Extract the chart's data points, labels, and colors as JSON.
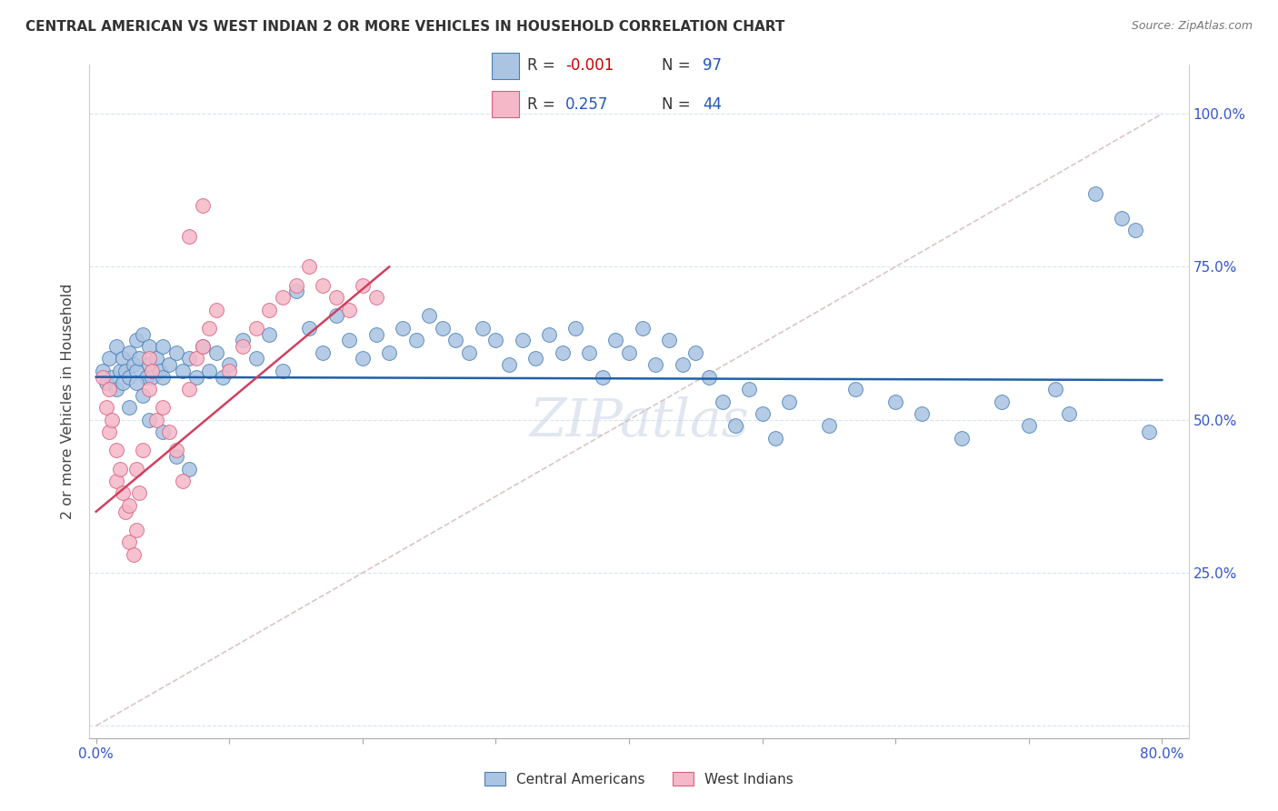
{
  "title": "CENTRAL AMERICAN VS WEST INDIAN 2 OR MORE VEHICLES IN HOUSEHOLD CORRELATION CHART",
  "source": "Source: ZipAtlas.com",
  "ylabel": "2 or more Vehicles in Household",
  "blue_color": "#aac4e2",
  "pink_color": "#f5b8c8",
  "blue_edge_color": "#4a7fb5",
  "pink_edge_color": "#d96080",
  "blue_line_color": "#2060a8",
  "pink_line_color": "#d04060",
  "diag_line_color": "#d0b8b8",
  "watermark_color": "#cdd8e8",
  "legend_R_color": "#cc0000",
  "legend_N_color": "#2255bb",
  "legend_label_color": "#333333",
  "title_color": "#333333",
  "tick_color": "#3355cc",
  "grid_color": "#d8e4f0",
  "blue_scatter_x": [
    0.005,
    0.008,
    0.01,
    0.012,
    0.015,
    0.015,
    0.018,
    0.02,
    0.02,
    0.022,
    0.025,
    0.025,
    0.028,
    0.03,
    0.03,
    0.032,
    0.035,
    0.038,
    0.04,
    0.04,
    0.042,
    0.045,
    0.048,
    0.05,
    0.05,
    0.055,
    0.06,
    0.065,
    0.07,
    0.075,
    0.08,
    0.085,
    0.09,
    0.095,
    0.1,
    0.11,
    0.12,
    0.13,
    0.14,
    0.15,
    0.16,
    0.17,
    0.18,
    0.19,
    0.2,
    0.21,
    0.22,
    0.23,
    0.24,
    0.25,
    0.26,
    0.27,
    0.28,
    0.29,
    0.3,
    0.31,
    0.32,
    0.33,
    0.34,
    0.35,
    0.36,
    0.37,
    0.38,
    0.39,
    0.4,
    0.41,
    0.42,
    0.43,
    0.44,
    0.45,
    0.46,
    0.47,
    0.48,
    0.49,
    0.5,
    0.51,
    0.52,
    0.55,
    0.57,
    0.6,
    0.62,
    0.65,
    0.68,
    0.7,
    0.72,
    0.73,
    0.75,
    0.77,
    0.78,
    0.79,
    0.025,
    0.03,
    0.035,
    0.04,
    0.05,
    0.06,
    0.07
  ],
  "blue_scatter_y": [
    0.58,
    0.56,
    0.6,
    0.57,
    0.55,
    0.62,
    0.58,
    0.6,
    0.56,
    0.58,
    0.61,
    0.57,
    0.59,
    0.63,
    0.58,
    0.6,
    0.64,
    0.57,
    0.59,
    0.62,
    0.57,
    0.6,
    0.58,
    0.62,
    0.57,
    0.59,
    0.61,
    0.58,
    0.6,
    0.57,
    0.62,
    0.58,
    0.61,
    0.57,
    0.59,
    0.63,
    0.6,
    0.64,
    0.58,
    0.71,
    0.65,
    0.61,
    0.67,
    0.63,
    0.6,
    0.64,
    0.61,
    0.65,
    0.63,
    0.67,
    0.65,
    0.63,
    0.61,
    0.65,
    0.63,
    0.59,
    0.63,
    0.6,
    0.64,
    0.61,
    0.65,
    0.61,
    0.57,
    0.63,
    0.61,
    0.65,
    0.59,
    0.63,
    0.59,
    0.61,
    0.57,
    0.53,
    0.49,
    0.55,
    0.51,
    0.47,
    0.53,
    0.49,
    0.55,
    0.53,
    0.51,
    0.47,
    0.53,
    0.49,
    0.55,
    0.51,
    0.87,
    0.83,
    0.81,
    0.48,
    0.52,
    0.56,
    0.54,
    0.5,
    0.48,
    0.44,
    0.42
  ],
  "pink_scatter_x": [
    0.005,
    0.008,
    0.01,
    0.01,
    0.012,
    0.015,
    0.015,
    0.018,
    0.02,
    0.022,
    0.025,
    0.025,
    0.028,
    0.03,
    0.03,
    0.032,
    0.035,
    0.04,
    0.04,
    0.042,
    0.045,
    0.05,
    0.055,
    0.06,
    0.065,
    0.07,
    0.075,
    0.08,
    0.085,
    0.09,
    0.1,
    0.11,
    0.12,
    0.13,
    0.14,
    0.15,
    0.16,
    0.17,
    0.18,
    0.19,
    0.2,
    0.21,
    0.07,
    0.08
  ],
  "pink_scatter_y": [
    0.57,
    0.52,
    0.55,
    0.48,
    0.5,
    0.45,
    0.4,
    0.42,
    0.38,
    0.35,
    0.3,
    0.36,
    0.28,
    0.32,
    0.42,
    0.38,
    0.45,
    0.55,
    0.6,
    0.58,
    0.5,
    0.52,
    0.48,
    0.45,
    0.4,
    0.55,
    0.6,
    0.62,
    0.65,
    0.68,
    0.58,
    0.62,
    0.65,
    0.68,
    0.7,
    0.72,
    0.75,
    0.72,
    0.7,
    0.68,
    0.72,
    0.7,
    0.8,
    0.85
  ],
  "blue_line_x": [
    0.0,
    0.8
  ],
  "blue_line_y": [
    0.57,
    0.565
  ],
  "pink_line_x": [
    0.0,
    0.22
  ],
  "pink_line_y": [
    0.35,
    0.75
  ],
  "diag_line_x": [
    0.0,
    0.8
  ],
  "diag_line_y": [
    0.0,
    1.0
  ],
  "x_ticks": [
    0.0,
    0.1,
    0.2,
    0.3,
    0.4,
    0.5,
    0.6,
    0.7,
    0.8
  ],
  "y_ticks": [
    0.0,
    0.25,
    0.5,
    0.75,
    1.0
  ],
  "x_tick_labels_show": [
    "0.0%",
    "80.0%"
  ],
  "y_tick_labels": [
    "",
    "25.0%",
    "50.0%",
    "75.0%",
    "100.0%"
  ]
}
